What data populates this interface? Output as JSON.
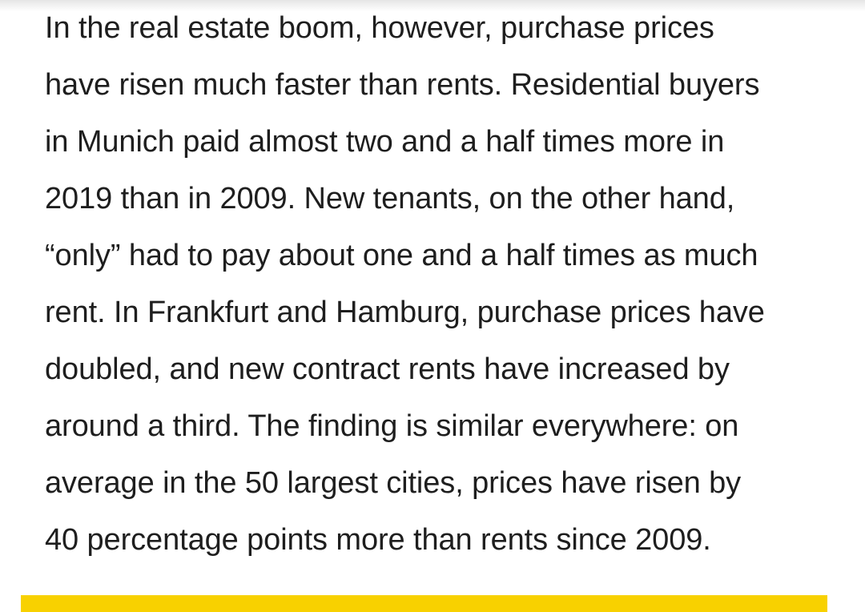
{
  "article": {
    "lines": [
      "In the real estate boom, however, purchase prices",
      "have risen much faster than rents. Residential buyers",
      "in Munich paid almost two and a half times more in",
      "2019 than in 2009. New tenants, on the other hand,",
      "“only” had to pay about one and a half times as much",
      "rent. In Frankfurt and Hamburg, purchase prices have",
      "doubled, and new contract rents have increased by",
      "around a third. The finding is similar everywhere: on",
      "average in the 50 largest cities, prices have risen by",
      "40 percentage points more than rents since 2009."
    ]
  },
  "colors": {
    "text": "#1e1e1e",
    "accent_bar": "#f8d100",
    "background": "#ffffff"
  }
}
